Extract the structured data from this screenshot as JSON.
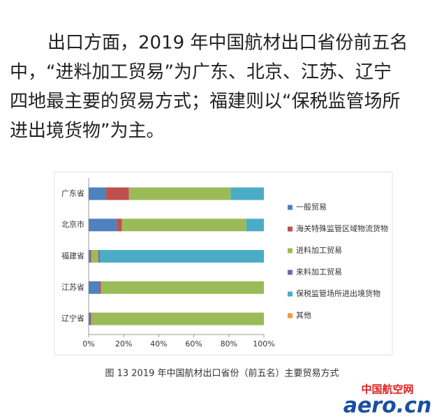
{
  "paragraph": {
    "lines": [
      "出口方面，2019 年中国航材出口省份前五名",
      "中，“进料加工贸易”为广东、北京、江苏、辽宁",
      "四地最主要的贸易方式；福建则以“保税监管场所",
      "进出境货物”为主。"
    ]
  },
  "chart_data": {
    "type": "bar",
    "orientation": "horizontal",
    "stacked": true,
    "categories": [
      "广东省",
      "北京市",
      "福建省",
      "江苏省",
      "辽宁省"
    ],
    "series": [
      {
        "name": "一般贸易",
        "color": "#4f81bd",
        "values": [
          10,
          16,
          1,
          6,
          1
        ]
      },
      {
        "name": "海关特殊监管区域物流货物",
        "color": "#c0504d",
        "values": [
          13,
          3,
          0.5,
          1,
          0.5
        ]
      },
      {
        "name": "进料加工贸易",
        "color": "#9bbb59",
        "values": [
          58,
          71,
          4,
          93,
          98.5
        ]
      },
      {
        "name": "来料加工贸易",
        "color": "#8064a2",
        "values": [
          0,
          0,
          1,
          0,
          0
        ]
      },
      {
        "name": "保税监管场所进出境货物",
        "color": "#4bacc6",
        "values": [
          19,
          10,
          93.5,
          0,
          0
        ]
      },
      {
        "name": "其他",
        "color": "#f79646",
        "values": [
          0,
          0,
          0,
          0,
          0
        ]
      }
    ],
    "xlim": [
      0,
      100
    ],
    "xticks": [
      {
        "value": 0,
        "label": "0%"
      },
      {
        "value": 20,
        "label": "20%"
      },
      {
        "value": 40,
        "label": "40%"
      },
      {
        "value": 60,
        "label": "60%"
      },
      {
        "value": 80,
        "label": "80%"
      },
      {
        "value": 100,
        "label": "100%"
      }
    ],
    "grid": false,
    "legend": "right"
  },
  "caption": "图 13 2019 年中国航材出口省份（前五名）主要贸易方式",
  "logo": {
    "top": "中国航空网",
    "main": "aero.cn"
  }
}
